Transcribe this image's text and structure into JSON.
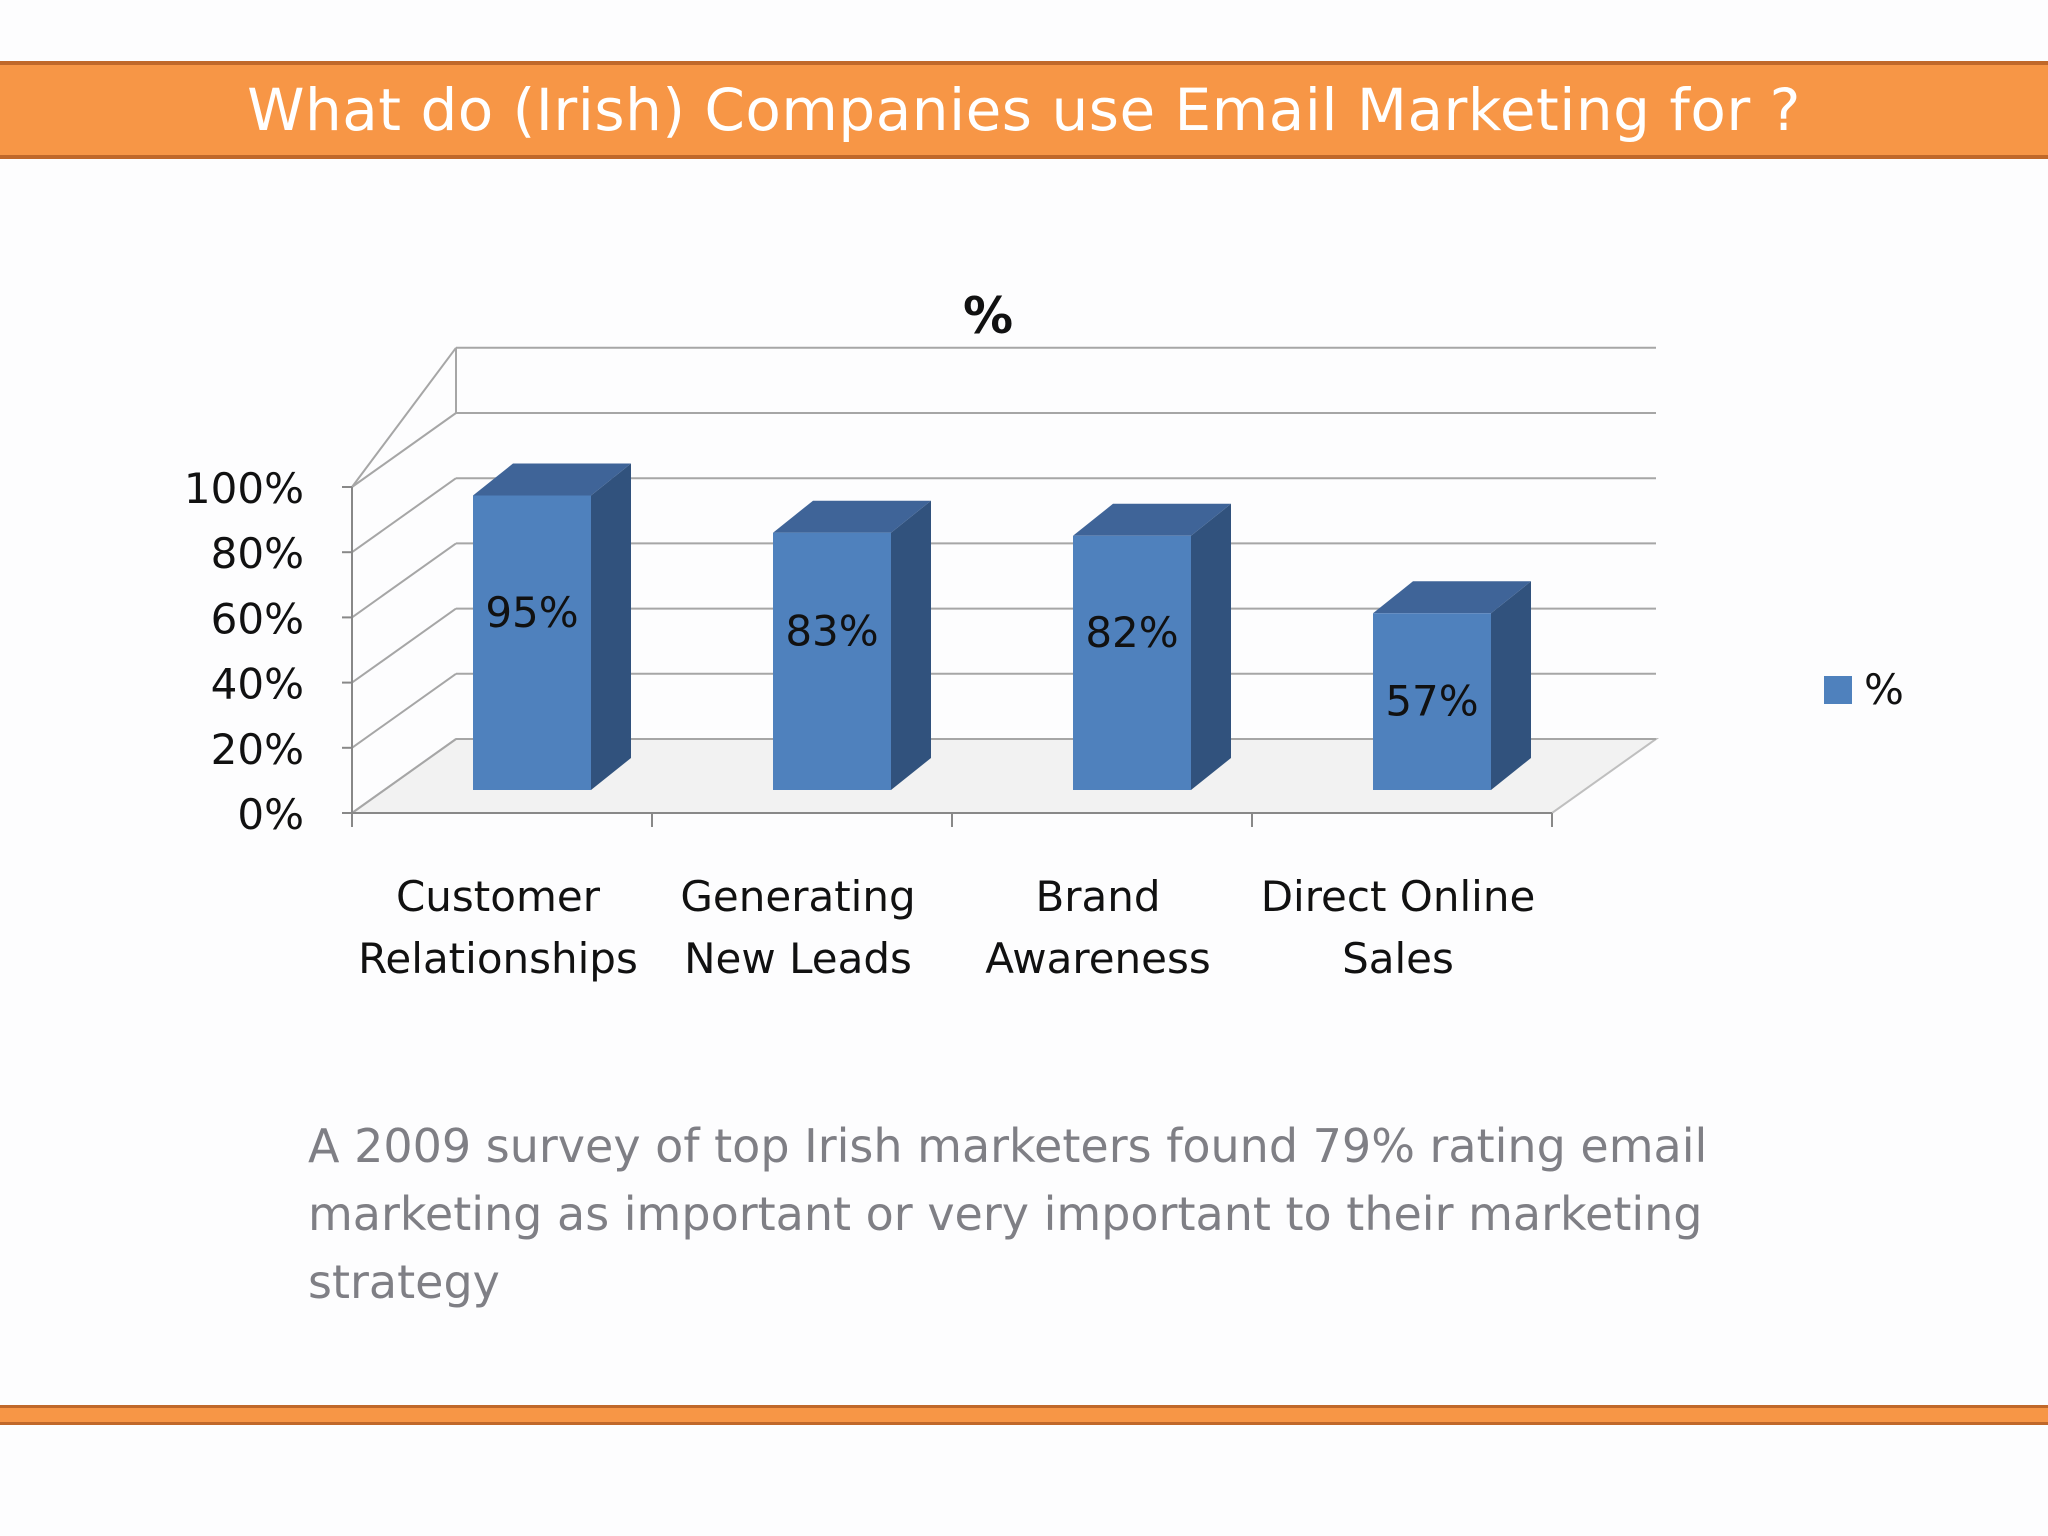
{
  "slide": {
    "title": "What do (Irish) Companies use Email Marketing for ?",
    "caption": "A 2009 survey of  top Irish marketers found 79% rating email marketing as important or very important to their marketing strategy"
  },
  "colors": {
    "accent": "#f79646",
    "accent_border": "#c0682a",
    "bar_front": "#4f81bd",
    "bar_side": "#31527d",
    "bar_top": "#3f6498",
    "caption_text": "#7f7f85"
  },
  "chart_data": {
    "type": "bar",
    "style": "3d-column",
    "title": "%",
    "categories": [
      [
        "Customer",
        "Relationships"
      ],
      [
        "Generating",
        "New Leads"
      ],
      [
        "Brand",
        "Awareness"
      ],
      [
        "Direct Online",
        "Sales"
      ]
    ],
    "series": [
      {
        "name": "%",
        "values": [
          95,
          83,
          82,
          57
        ],
        "labels": [
          "95%",
          "83%",
          "82%",
          "57%"
        ]
      }
    ],
    "ylim": [
      0,
      100
    ],
    "yticks": [
      0,
      20,
      40,
      60,
      80,
      100
    ],
    "ytick_labels": [
      "0%",
      "20%",
      "40%",
      "60%",
      "80%",
      "100%"
    ],
    "grid": true,
    "legend": "right"
  }
}
